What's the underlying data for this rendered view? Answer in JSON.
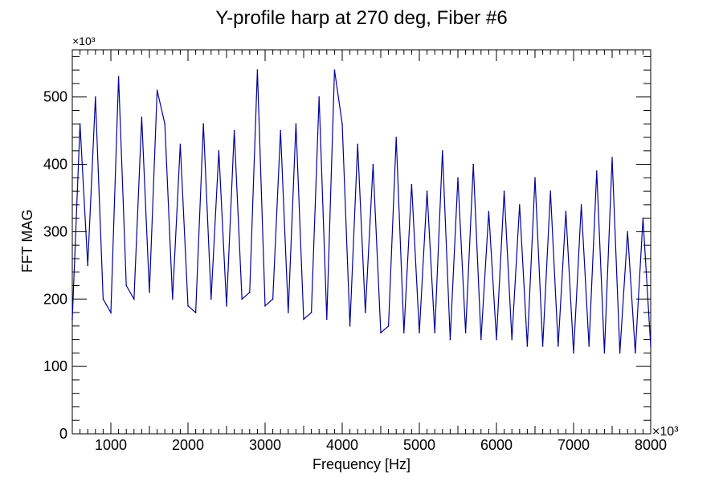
{
  "chart_data": {
    "type": "line",
    "title": "Y-profile harp at 270 deg, Fiber #6",
    "xlabel": "Frequency [Hz]",
    "ylabel": "FFT MAG",
    "x_multiplier": "×10³",
    "y_multiplier": "×10³",
    "xlim": [
      500,
      8000
    ],
    "ylim": [
      0,
      570
    ],
    "x_ticks": [
      1000,
      2000,
      3000,
      4000,
      5000,
      6000,
      7000,
      8000
    ],
    "y_ticks": [
      0,
      100,
      200,
      300,
      400,
      500
    ],
    "grid": false,
    "legend": "none",
    "series": [
      {
        "color": "#000099",
        "x": [
          500,
          600,
          700,
          800,
          900,
          1000,
          1100,
          1200,
          1300,
          1400,
          1500,
          1600,
          1700,
          1800,
          1900,
          2000,
          2100,
          2200,
          2300,
          2400,
          2500,
          2600,
          2700,
          2800,
          2900,
          3000,
          3100,
          3200,
          3300,
          3400,
          3500,
          3600,
          3700,
          3800,
          3900,
          4000,
          4100,
          4200,
          4300,
          4400,
          4500,
          4600,
          4700,
          4800,
          4900,
          5000,
          5100,
          5200,
          5300,
          5400,
          5500,
          5600,
          5700,
          5800,
          5900,
          6000,
          6100,
          6200,
          6300,
          6400,
          6500,
          6600,
          6700,
          6800,
          6900,
          7000,
          7100,
          7200,
          7300,
          7400,
          7500,
          7600,
          7700,
          7800,
          7900,
          8000
        ],
        "y": [
          170,
          460,
          250,
          500,
          200,
          180,
          530,
          220,
          200,
          470,
          210,
          510,
          460,
          200,
          430,
          190,
          180,
          460,
          200,
          420,
          190,
          450,
          200,
          210,
          540,
          190,
          200,
          450,
          180,
          460,
          170,
          180,
          500,
          170,
          540,
          460,
          160,
          430,
          180,
          400,
          150,
          160,
          440,
          150,
          370,
          150,
          360,
          150,
          420,
          140,
          380,
          150,
          400,
          140,
          330,
          140,
          360,
          140,
          340,
          130,
          380,
          130,
          360,
          130,
          330,
          120,
          340,
          130,
          390,
          120,
          410,
          120,
          300,
          120,
          320,
          130
        ]
      }
    ]
  }
}
